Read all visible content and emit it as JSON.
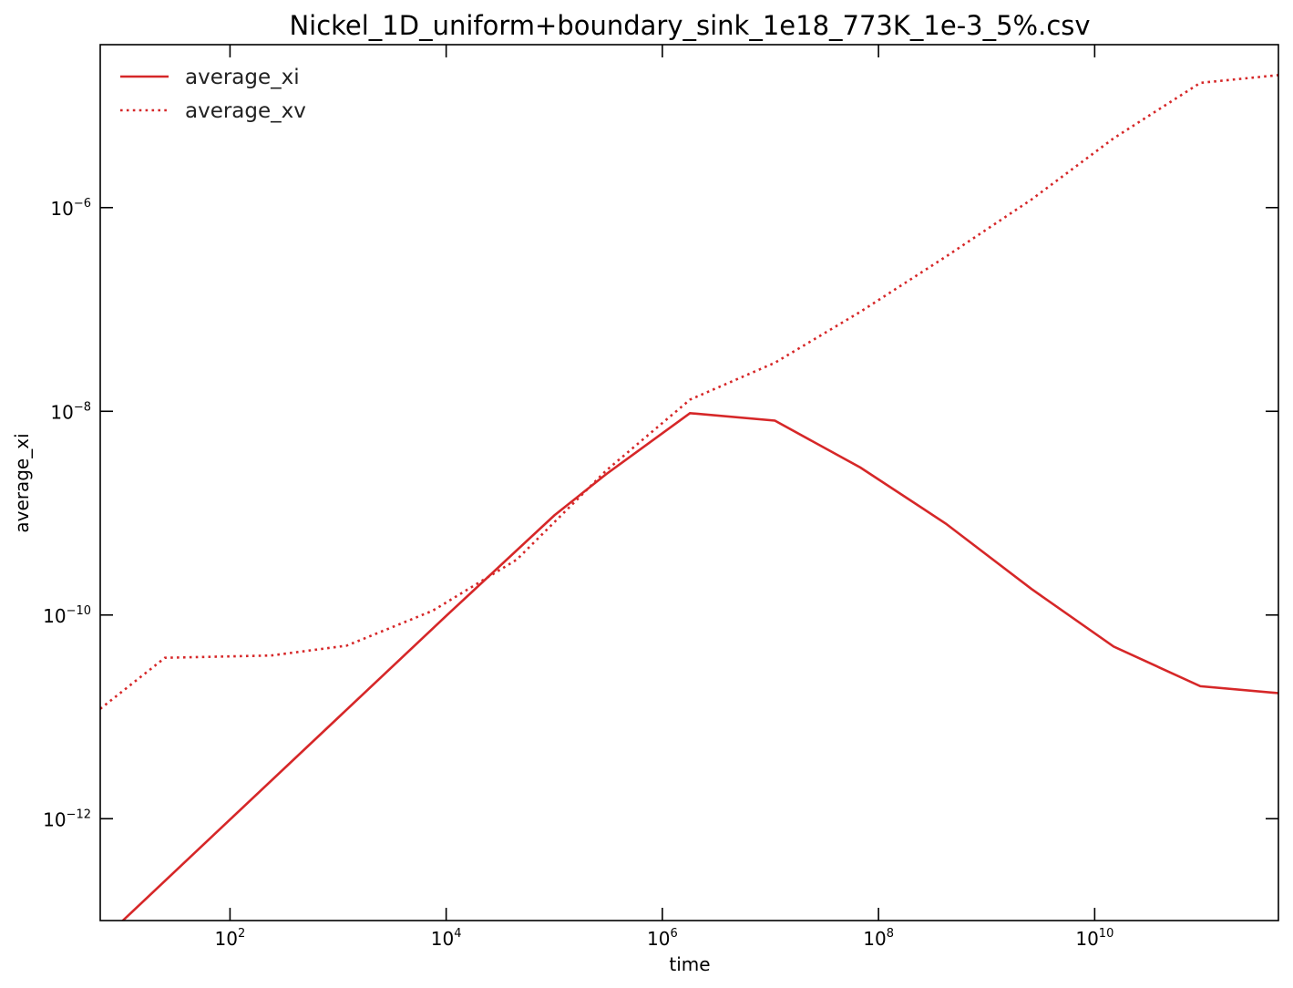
{
  "chart_data": {
    "type": "line",
    "title": "Nickel_1D_uniform+boundary_sink_1e18_773K_1e-3_5%.csv",
    "xlabel": "time",
    "ylabel": "average_xi",
    "xscale": "log",
    "yscale": "log",
    "xlim": [
      6.3,
      501187233627
    ],
    "ylim": [
      1e-13,
      3.98e-05
    ],
    "grid": false,
    "legend_position": "top-left",
    "line_color": "#d62728",
    "x_ticks": [
      {
        "base": "10",
        "exp": "2",
        "value": 100
      },
      {
        "base": "10",
        "exp": "4",
        "value": 10000
      },
      {
        "base": "10",
        "exp": "6",
        "value": 1000000
      },
      {
        "base": "10",
        "exp": "8",
        "value": 100000000
      },
      {
        "base": "10",
        "exp": "10",
        "value": 10000000000
      }
    ],
    "y_ticks": [
      {
        "base": "10",
        "exp": "−6",
        "value": 1e-06
      },
      {
        "base": "10",
        "exp": "−8",
        "value": 1e-08
      },
      {
        "base": "10",
        "exp": "−10",
        "value": 1e-10
      },
      {
        "base": "10",
        "exp": "−12",
        "value": 1e-12
      }
    ],
    "series": [
      {
        "name": "average_xi",
        "style": "solid",
        "points": [
          {
            "x": 6.3,
            "y": 7.4e-14
          },
          {
            "x": 10,
            "y": 9.8e-14
          },
          {
            "x": 100,
            "y": 9.8e-13
          },
          {
            "x": 1000,
            "y": 9.8e-12
          },
          {
            "x": 10000,
            "y": 9.8e-11
          },
          {
            "x": 100000,
            "y": 9.5e-10
          },
          {
            "x": 300000,
            "y": 2.4e-09
          },
          {
            "x": 1800000,
            "y": 9.6e-09
          },
          {
            "x": 11000000,
            "y": 8.1e-09
          },
          {
            "x": 68000000,
            "y": 2.8e-09
          },
          {
            "x": 420000000,
            "y": 7.9e-10
          },
          {
            "x": 2600000000,
            "y": 1.8e-10
          },
          {
            "x": 15000000000,
            "y": 4.9e-11
          },
          {
            "x": 95000000000,
            "y": 2e-11
          },
          {
            "x": 501187233627,
            "y": 1.71e-11
          }
        ]
      },
      {
        "name": "average_xv",
        "style": "dotted",
        "points": [
          {
            "x": 6.3,
            "y": 1.2e-11
          },
          {
            "x": 25,
            "y": 3.8e-11
          },
          {
            "x": 240,
            "y": 4e-11
          },
          {
            "x": 1200,
            "y": 5e-11
          },
          {
            "x": 7500,
            "y": 1.1e-10
          },
          {
            "x": 45000,
            "y": 3.5e-10
          },
          {
            "x": 300000,
            "y": 2.6e-09
          },
          {
            "x": 1800000,
            "y": 1.3e-08
          },
          {
            "x": 11000000,
            "y": 3e-08
          },
          {
            "x": 68000000,
            "y": 9.5e-08
          },
          {
            "x": 420000000,
            "y": 3.3e-07
          },
          {
            "x": 2600000000,
            "y": 1.2e-06
          },
          {
            "x": 15000000000,
            "y": 4.8e-06
          },
          {
            "x": 95000000000,
            "y": 1.68e-05
          },
          {
            "x": 501187233627,
            "y": 2e-05
          }
        ]
      }
    ]
  }
}
